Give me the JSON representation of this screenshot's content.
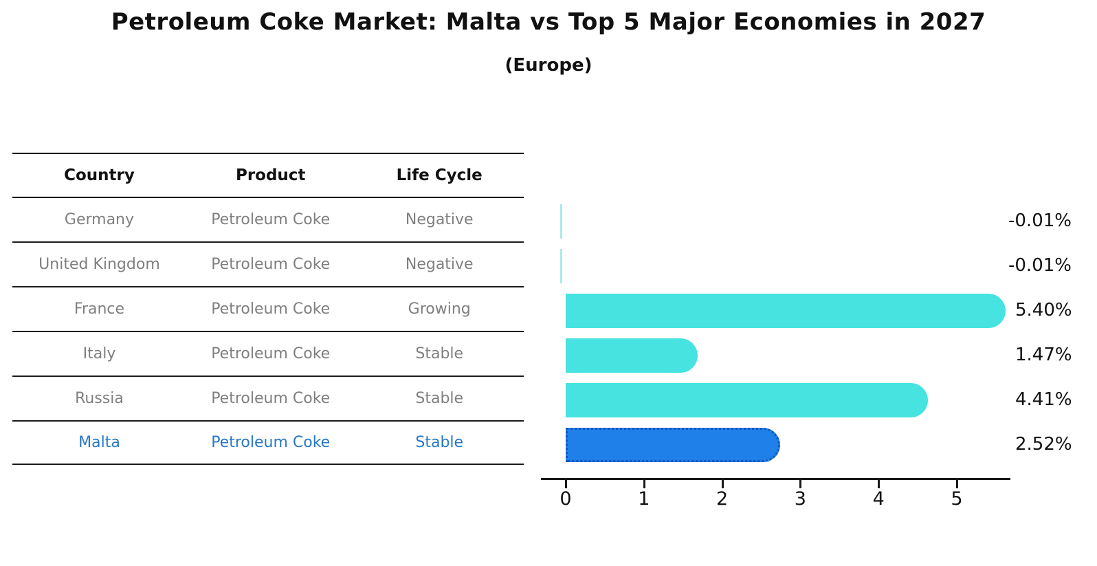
{
  "header": {
    "title": "Petroleum Coke Market: Malta vs Top 5 Major Economies in 2027",
    "subtitle": "(Europe)"
  },
  "table": {
    "columns": [
      "Country",
      "Product",
      "Life Cycle"
    ],
    "rows": [
      {
        "country": "Germany",
        "product": "Petroleum Coke",
        "life_cycle": "Negative",
        "highlighted": false
      },
      {
        "country": "United Kingdom",
        "product": "Petroleum Coke",
        "life_cycle": "Negative",
        "highlighted": false
      },
      {
        "country": "France",
        "product": "Petroleum Coke",
        "life_cycle": "Growing",
        "highlighted": false
      },
      {
        "country": "Italy",
        "product": "Petroleum Coke",
        "life_cycle": "Stable",
        "highlighted": false
      },
      {
        "country": "Russia",
        "product": "Petroleum Coke",
        "life_cycle": "Stable",
        "highlighted": false
      },
      {
        "country": "Malta",
        "product": "Petroleum Coke",
        "life_cycle": "Stable",
        "highlighted": true
      }
    ]
  },
  "chart_data": {
    "type": "bar",
    "orientation": "horizontal",
    "title": "Petroleum Coke Market: Malta vs Top 5 Major Economies in 2027",
    "subtitle": "(Europe)",
    "categories": [
      "Germany",
      "United Kingdom",
      "France",
      "Italy",
      "Russia",
      "Malta"
    ],
    "values": [
      -0.01,
      -0.01,
      5.4,
      1.47,
      4.41,
      2.52
    ],
    "value_labels": [
      "-0.01%",
      "-0.01%",
      "5.40%",
      "1.47%",
      "4.41%",
      "2.52%"
    ],
    "x_ticks": [
      0,
      1,
      2,
      3,
      4,
      5
    ],
    "xlim": [
      -0.3,
      5.7
    ],
    "grid": false,
    "legend": "none",
    "highlight_index": 5,
    "colors": {
      "bar": "#46E3E0",
      "bar_sliver": "#ABEAE7",
      "highlight_fill": "#1E80E8",
      "highlight_border": "#1456BE",
      "highlight_text": "#2878C8",
      "axis": "#1a1a1a",
      "table_text": "#7f7f7f",
      "label_text": "#111111"
    }
  }
}
